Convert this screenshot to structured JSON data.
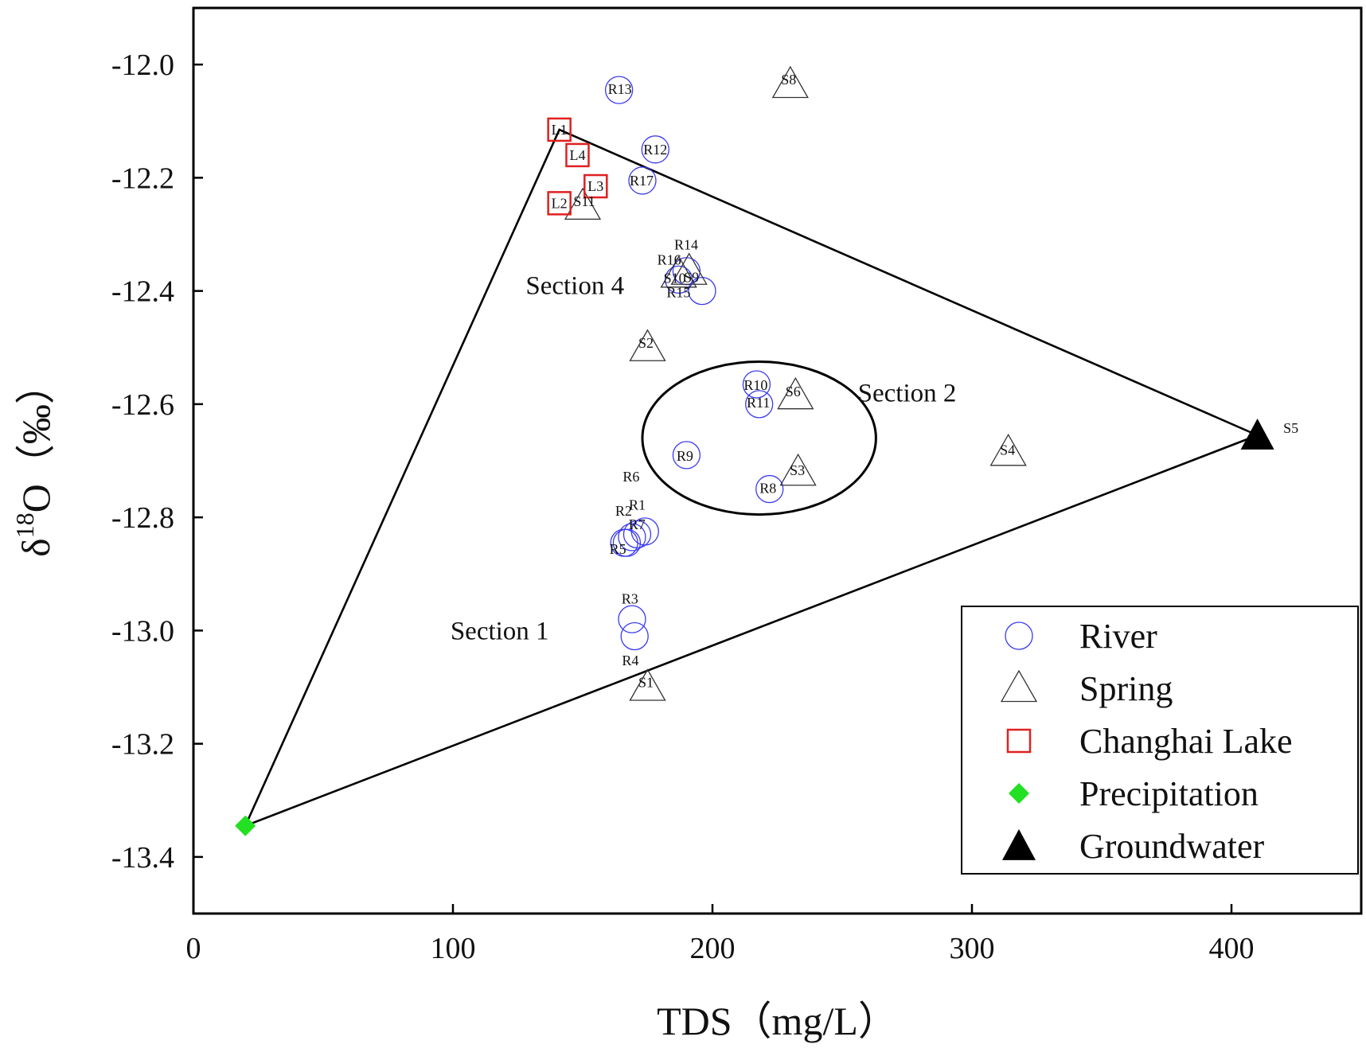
{
  "chart_data": {
    "type": "scatter",
    "xlabel": "TDS（mg/L）",
    "ylabel_main": "δ",
    "ylabel_sup": "18",
    "ylabel_rest": "O（‰）",
    "xlim": [
      0,
      450
    ],
    "ylim": [
      -13.5,
      -11.9
    ],
    "xticks": [
      0,
      100,
      200,
      300,
      400
    ],
    "xtick_labels": [
      "0",
      "100",
      "200",
      "300",
      "400"
    ],
    "yticks": [
      -12.0,
      -12.2,
      -12.4,
      -12.6,
      -12.8,
      -13.0,
      -13.2,
      -13.4
    ],
    "ytick_labels": [
      "-12.0",
      "-12.2",
      "-12.4",
      "-12.6",
      "-12.8",
      "-13.0",
      "-13.2",
      "-13.4"
    ],
    "series": [
      {
        "name": "River",
        "marker": "circle-open",
        "color": "#3a3af0",
        "points": [
          {
            "label": "R1",
            "x": 171,
            "y": -12.83
          },
          {
            "label": "R2",
            "x": 167,
            "y": -12.845
          },
          {
            "label": "R3",
            "x": 170,
            "y": -13.01
          },
          {
            "label": "R4",
            "x": 169,
            "y": -12.98
          },
          {
            "label": "R5",
            "x": 166,
            "y": -12.845
          },
          {
            "label": "R6",
            "x": 169,
            "y": -12.835
          },
          {
            "label": "R7",
            "x": 174,
            "y": -12.825
          },
          {
            "label": "R8",
            "x": 222,
            "y": -12.75
          },
          {
            "label": "R9",
            "x": 190,
            "y": -12.69
          },
          {
            "label": "R10",
            "x": 217,
            "y": -12.565
          },
          {
            "label": "R11",
            "x": 218,
            "y": -12.6
          },
          {
            "label": "R12",
            "x": 178,
            "y": -12.15
          },
          {
            "label": "R13",
            "x": 164,
            "y": -12.045
          },
          {
            "label": "R14",
            "x": 196,
            "y": -12.4
          },
          {
            "label": "R15",
            "x": 190,
            "y": -12.365
          },
          {
            "label": "R16",
            "x": 187,
            "y": -12.38
          },
          {
            "label": "R17",
            "x": 173,
            "y": -12.205
          }
        ]
      },
      {
        "name": "Spring",
        "marker": "triangle-open",
        "color": "#333333",
        "points": [
          {
            "label": "S1",
            "x": 175,
            "y": -13.1
          },
          {
            "label": "S2",
            "x": 175,
            "y": -12.5
          },
          {
            "label": "S3",
            "x": 233,
            "y": -12.72
          },
          {
            "label": "S4",
            "x": 314,
            "y": -12.685
          },
          {
            "label": "S6",
            "x": 232,
            "y": -12.585
          },
          {
            "label": "S8",
            "x": 230,
            "y": -12.035
          },
          {
            "label": "S9",
            "x": 191,
            "y": -12.365
          },
          {
            "label": "S10",
            "x": 187,
            "y": -12.37
          },
          {
            "label": "S11",
            "x": 150,
            "y": -12.25
          }
        ]
      },
      {
        "name": "Changhai Lake",
        "marker": "square-open",
        "color": "#e02020",
        "points": [
          {
            "label": "L1",
            "x": 141,
            "y": -12.115
          },
          {
            "label": "L2",
            "x": 141,
            "y": -12.245
          },
          {
            "label": "L3",
            "x": 155,
            "y": -12.215
          },
          {
            "label": "L4",
            "x": 148,
            "y": -12.16
          }
        ]
      },
      {
        "name": "Precipitation",
        "marker": "diamond-filled",
        "color": "#22e022",
        "points": [
          {
            "label": "",
            "x": 20,
            "y": -13.345
          }
        ]
      },
      {
        "name": "Groundwater",
        "marker": "triangle-filled",
        "color": "#000000",
        "points": [
          {
            "label": "S5",
            "x": 410,
            "y": -12.655
          }
        ]
      }
    ],
    "mixing_triangle": [
      [
        20,
        -13.345
      ],
      [
        141,
        -12.115
      ],
      [
        410,
        -12.655
      ]
    ],
    "ellipse": {
      "cx": 218,
      "cy": -12.66,
      "rx": 45,
      "ry": 0.135
    },
    "sections": [
      {
        "label": "Section 1",
        "x": 118,
        "y": -13.0
      },
      {
        "label": "Section 2",
        "x": 275,
        "y": -12.58
      },
      {
        "label": "Section 4",
        "x": 147,
        "y": -12.39
      }
    ],
    "label_offsets": {
      "R1": [
        0,
        -37
      ],
      "R2": [
        -4,
        -40
      ],
      "R3": [
        -6,
        -47
      ],
      "R4": [
        -2,
        52
      ],
      "R5": [
        -8,
        8
      ],
      "R6": [
        -1,
        -76
      ],
      "R7": [
        -10,
        -9
      ],
      "R8": [
        -2,
        -1
      ],
      "R9": [
        -2,
        1
      ],
      "R10": [
        -1,
        1
      ],
      "R11": [
        -1,
        -2
      ],
      "R12": [
        0,
        0
      ],
      "R13": [
        1,
        -1
      ],
      "R14": [
        -20,
        -58
      ],
      "R15": [
        -10,
        27
      ],
      "R16": [
        -12,
        -25
      ],
      "R17": [
        -1,
        0
      ],
      "S1": [
        -2,
        -6
      ],
      "S2": [
        -2,
        -6
      ],
      "S3": [
        -1,
        -2
      ],
      "S4": [
        -1,
        -3
      ],
      "S6": [
        -3,
        -5
      ],
      "S8": [
        -2,
        -6
      ],
      "S9": [
        3,
        8
      ],
      "S10": [
        -5,
        5
      ],
      "S11": [
        2,
        -6
      ],
      "S5": [
        42,
        -9
      ],
      "L1": [
        0,
        0
      ],
      "L2": [
        0,
        0
      ],
      "L3": [
        0,
        0
      ],
      "L4": [
        0,
        0
      ]
    }
  }
}
